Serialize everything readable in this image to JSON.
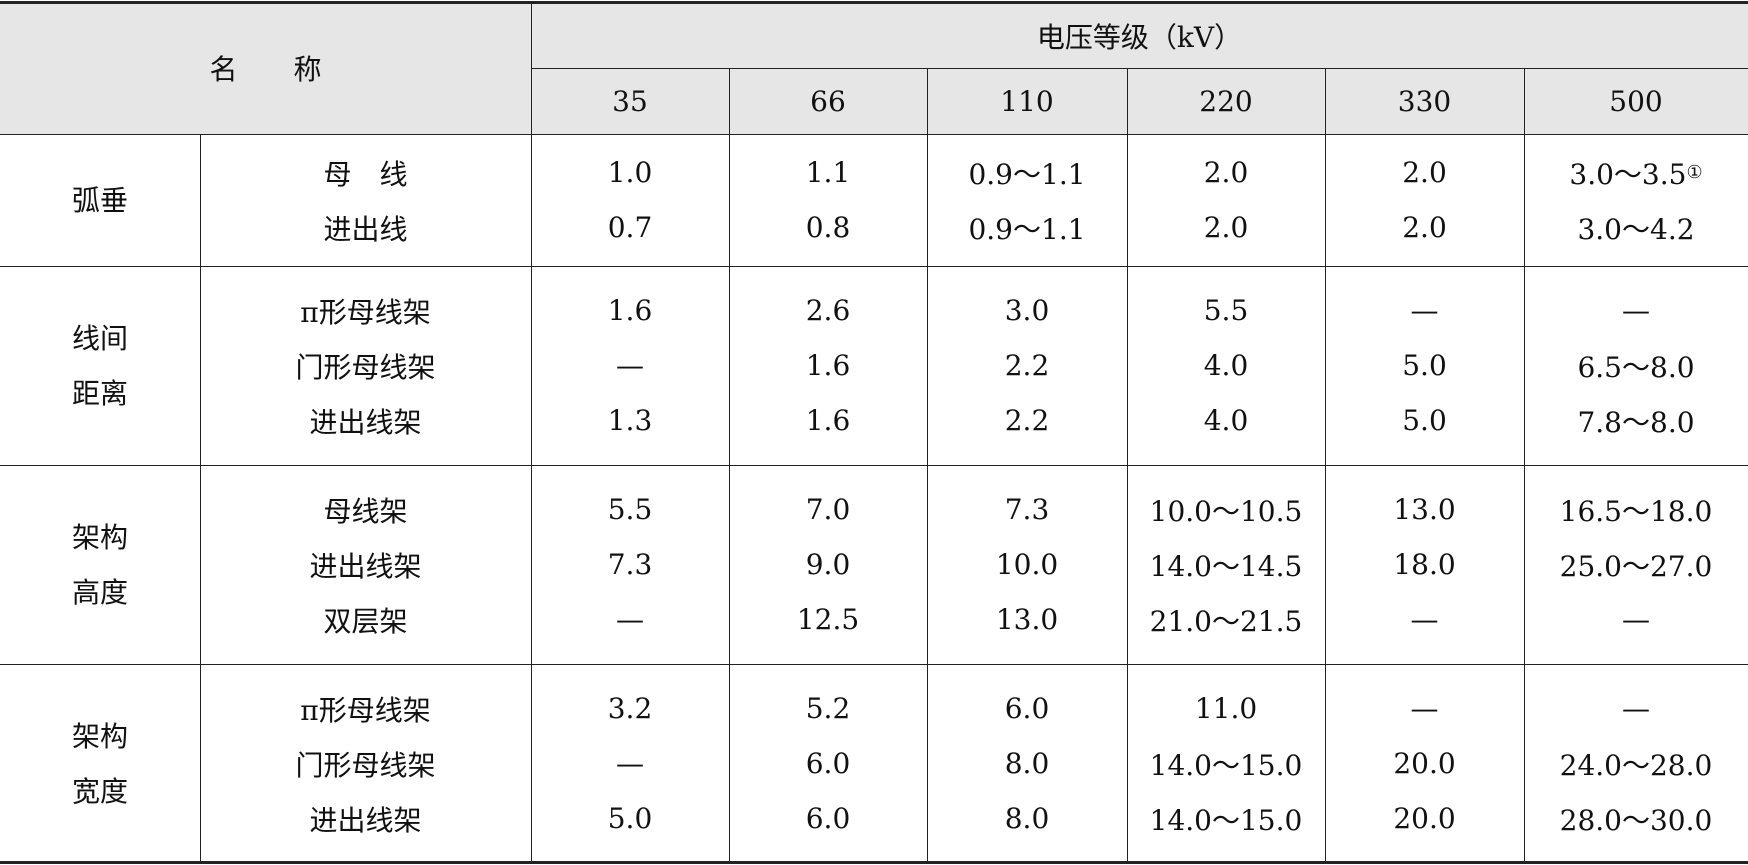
{
  "header": {
    "name": "名　　称",
    "group_title": "电压等级（kV）",
    "columns": [
      "35",
      "66",
      "110",
      "220",
      "330",
      "500"
    ]
  },
  "groups": [
    {
      "name": [
        "弧垂"
      ],
      "rows": [
        {
          "label": "母　线",
          "cells": [
            "1.0",
            "1.1",
            "0.9～1.1",
            "2.0",
            "2.0",
            {
              "text": "3.0～3.5",
              "note": "①"
            }
          ]
        },
        {
          "label": "进出线",
          "cells": [
            "0.7",
            "0.8",
            "0.9～1.1",
            "2.0",
            "2.0",
            "3.0～4.2"
          ]
        }
      ]
    },
    {
      "name": [
        "线间",
        "距离"
      ],
      "rows": [
        {
          "label": "π形母线架",
          "cells": [
            "1.6",
            "2.6",
            "3.0",
            "5.5",
            "—",
            "—"
          ]
        },
        {
          "label": "门形母线架",
          "cells": [
            "—",
            "1.6",
            "2.2",
            "4.0",
            "5.0",
            "6.5～8.0"
          ]
        },
        {
          "label": "进出线架",
          "cells": [
            "1.3",
            "1.6",
            "2.2",
            "4.0",
            "5.0",
            "7.8～8.0"
          ]
        }
      ]
    },
    {
      "name": [
        "架构",
        "高度"
      ],
      "rows": [
        {
          "label": "母线架",
          "cells": [
            "5.5",
            "7.0",
            "7.3",
            "10.0～10.5",
            "13.0",
            "16.5～18.0"
          ]
        },
        {
          "label": "进出线架",
          "cells": [
            "7.3",
            "9.0",
            "10.0",
            "14.0～14.5",
            "18.0",
            "25.0～27.0"
          ]
        },
        {
          "label": "双层架",
          "cells": [
            "—",
            "12.5",
            "13.0",
            "21.0～21.5",
            "—",
            "—"
          ]
        }
      ]
    },
    {
      "name": [
        "架构",
        "宽度"
      ],
      "rows": [
        {
          "label": "π形母线架",
          "cells": [
            "3.2",
            "5.2",
            "6.0",
            "11.0",
            "—",
            "—"
          ]
        },
        {
          "label": "门形母线架",
          "cells": [
            "—",
            "6.0",
            "8.0",
            "14.0～15.0",
            "20.0",
            "24.0～28.0"
          ]
        },
        {
          "label": "进出线架",
          "cells": [
            "5.0",
            "6.0",
            "8.0",
            "14.0～15.0",
            "20.0",
            "28.0～30.0"
          ]
        }
      ]
    }
  ]
}
